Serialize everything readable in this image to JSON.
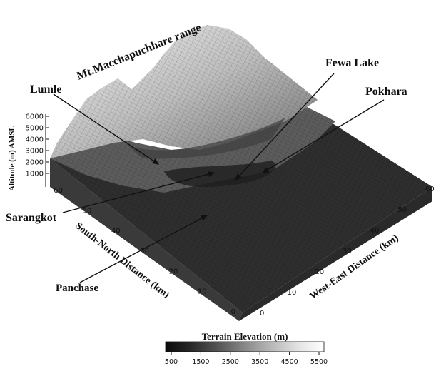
{
  "map": {
    "place_labels": [
      {
        "key": "range",
        "text": "Mt.Macchapuchhare range"
      },
      {
        "key": "lumle",
        "text": "Lumle"
      },
      {
        "key": "fewa",
        "text": "Fewa Lake"
      },
      {
        "key": "pokhara",
        "text": "Pokhara"
      },
      {
        "key": "sarangkot",
        "text": "Sarangkot"
      },
      {
        "key": "panchase",
        "text": "Panchase"
      }
    ],
    "z_axis": {
      "label": "Altitude (m) AMSL",
      "ticks": [
        "6000",
        "5000",
        "4000",
        "3000",
        "2000",
        "1000"
      ]
    },
    "sn_axis": {
      "label": "South-North Distance (km)",
      "ticks": [
        "60",
        "50",
        "40",
        "30",
        "20",
        "10",
        "0"
      ]
    },
    "we_axis": {
      "label": "West-East Distance (km)",
      "ticks": [
        "0",
        "10",
        "20",
        "30",
        "40",
        "50",
        "60"
      ]
    },
    "colorbar": {
      "title": "Terrain Elevation (m)",
      "ticks": [
        "500",
        "1500",
        "2500",
        "3500",
        "4500",
        "5500"
      ]
    }
  }
}
